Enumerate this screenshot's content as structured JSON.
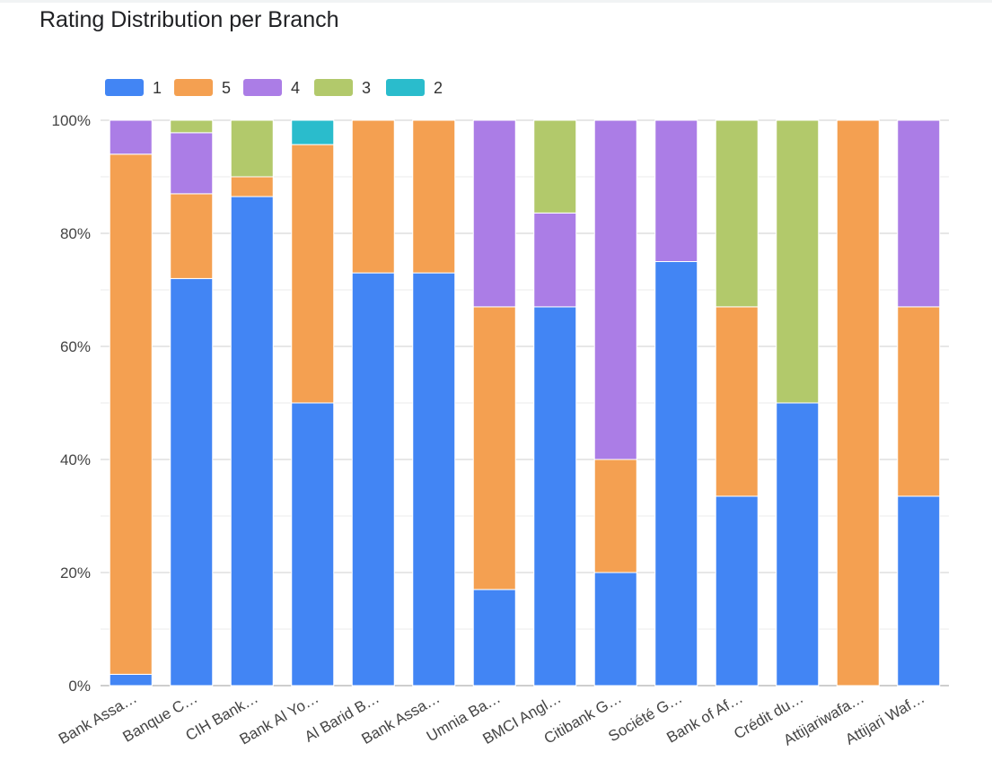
{
  "title": "Rating Distribution per Branch",
  "colors": {
    "1": "#4285f4",
    "5": "#f4a051",
    "4": "#ab7de6",
    "3": "#b2c96b",
    "2": "#2abccc"
  },
  "chart_data": {
    "type": "bar",
    "stacked": "percent",
    "title": "Rating Distribution per Branch",
    "categories": [
      "Bank Assa…",
      "Banque C…",
      "CIH Bank…",
      "Bank Al Yo…",
      "Al Barid B…",
      "Bank Assa…",
      "Umnia Ba…",
      "BMCI Angl…",
      "Citibank G…",
      "Société G…",
      "Bank of Af…",
      "Crédit du…",
      "Attijariwafa…",
      "Attijari Waf…"
    ],
    "series": [
      {
        "name": "1",
        "values": [
          2,
          72,
          86.5,
          50,
          73,
          73,
          17,
          67,
          20,
          75,
          33.5,
          50,
          0,
          33.5
        ]
      },
      {
        "name": "5",
        "values": [
          92,
          15,
          3.5,
          45.7,
          27,
          27,
          50,
          0,
          20,
          0,
          33.5,
          0,
          100,
          33.5
        ]
      },
      {
        "name": "4",
        "values": [
          6,
          10.8,
          0,
          0,
          0,
          0,
          33,
          16.6,
          60,
          25,
          0,
          0,
          0,
          33
        ]
      },
      {
        "name": "3",
        "values": [
          0,
          2.2,
          10,
          0,
          0,
          0,
          0,
          16.4,
          0,
          0,
          33,
          50,
          0,
          0
        ]
      },
      {
        "name": "2",
        "values": [
          0,
          0,
          0,
          4.3,
          0,
          0,
          0,
          0,
          0,
          0,
          0,
          0,
          0,
          0
        ]
      }
    ],
    "ytick_labels": [
      "0%",
      "20%",
      "40%",
      "60%",
      "80%",
      "100%"
    ],
    "ylim": [
      0,
      100
    ],
    "legend": "top-left",
    "grid": true
  }
}
